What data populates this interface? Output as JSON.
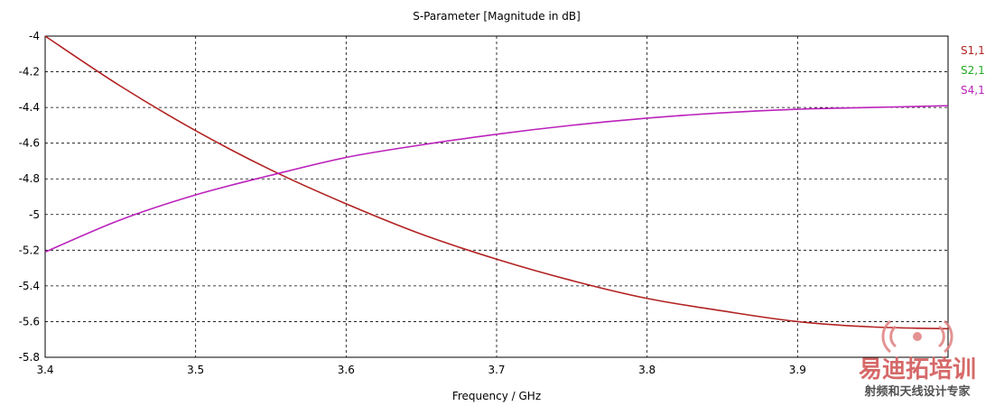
{
  "chart_data": {
    "type": "line",
    "title": "S-Parameter [Magnitude in dB]",
    "xlabel": "Frequency / GHz",
    "ylabel": "",
    "xlim": [
      3.4,
      4.0
    ],
    "ylim": [
      -5.8,
      -4.0
    ],
    "xticks": [
      "3.4",
      "3.5",
      "3.6",
      "3.7",
      "3.8",
      "3.9"
    ],
    "yticks": [
      "-4",
      "-4.2",
      "-4.4",
      "-4.6",
      "-4.8",
      "-5",
      "-5.2",
      "-5.4",
      "-5.6",
      "-5.8"
    ],
    "grid": true,
    "legend_position": "right",
    "series": [
      {
        "name": "S1,1",
        "color": "#b22222",
        "x": [
          3.4,
          3.45,
          3.5,
          3.55,
          3.6,
          3.65,
          3.7,
          3.75,
          3.8,
          3.85,
          3.9,
          3.95,
          4.0
        ],
        "y": [
          -4.0,
          -4.28,
          -4.53,
          -4.75,
          -4.94,
          -5.11,
          -5.25,
          -5.37,
          -5.47,
          -5.54,
          -5.6,
          -5.63,
          -5.64
        ]
      },
      {
        "name": "S2,1",
        "color": "#22aa22",
        "x": [],
        "y": []
      },
      {
        "name": "S4,1",
        "color": "#bb22bb",
        "x": [
          3.4,
          3.45,
          3.5,
          3.55,
          3.6,
          3.65,
          3.7,
          3.75,
          3.8,
          3.85,
          3.9,
          3.95,
          4.0
        ],
        "y": [
          -5.21,
          -5.03,
          -4.89,
          -4.78,
          -4.68,
          -4.61,
          -4.55,
          -4.5,
          -4.46,
          -4.43,
          -4.41,
          -4.4,
          -4.39
        ]
      }
    ]
  },
  "watermark": {
    "logo_text": "易迪拓培训",
    "tagline": "射频和天线设计专家"
  }
}
